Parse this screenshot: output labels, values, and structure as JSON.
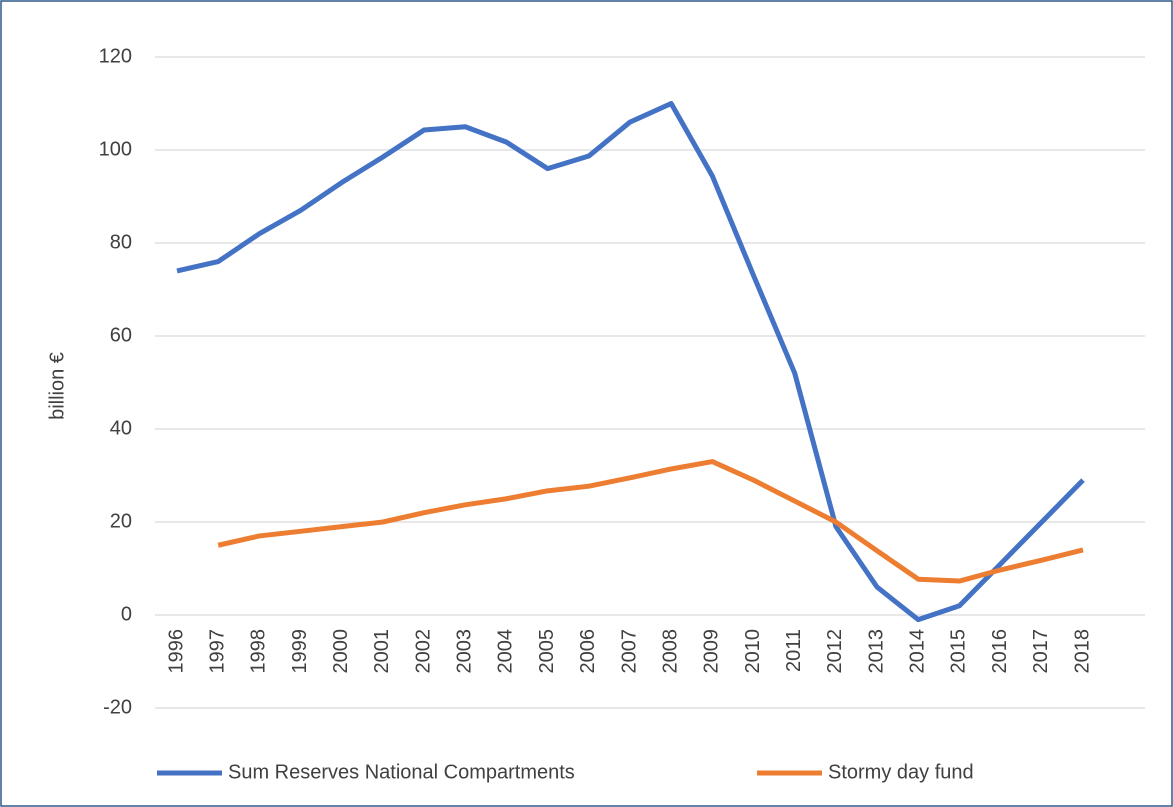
{
  "chart_data": {
    "type": "line",
    "y_label": "billion €",
    "categories": [
      "1996",
      "1997",
      "1998",
      "1999",
      "2000",
      "2001",
      "2002",
      "2003",
      "2004",
      "2005",
      "2006",
      "2007",
      "2008",
      "2009",
      "2010",
      "2011",
      "2012",
      "2013",
      "2014",
      "2015",
      "2016",
      "2017",
      "2018"
    ],
    "series": [
      {
        "name": "Sum Reserves National Compartments",
        "color": "#4472c4",
        "values": [
          74,
          76,
          82,
          87,
          93,
          98.5,
          104.3,
          105,
          101.7,
          96,
          98.7,
          106,
          110,
          94.4,
          73,
          52,
          19,
          6,
          -1,
          2,
          11,
          20,
          29
        ]
      },
      {
        "name": "Stormy day fund",
        "color": "#ed7d31",
        "values": [
          null,
          15,
          17,
          18,
          19,
          20,
          22,
          23.7,
          25,
          26.7,
          27.7,
          29.5,
          31.4,
          33,
          29,
          24.5,
          20,
          13.8,
          7.7,
          7.3,
          9.7,
          11.8,
          14
        ]
      }
    ],
    "ylim": [
      -20,
      120
    ],
    "yticks": [
      -20,
      0,
      20,
      40,
      60,
      80,
      100,
      120
    ],
    "grid": true,
    "legend": "bottom"
  }
}
